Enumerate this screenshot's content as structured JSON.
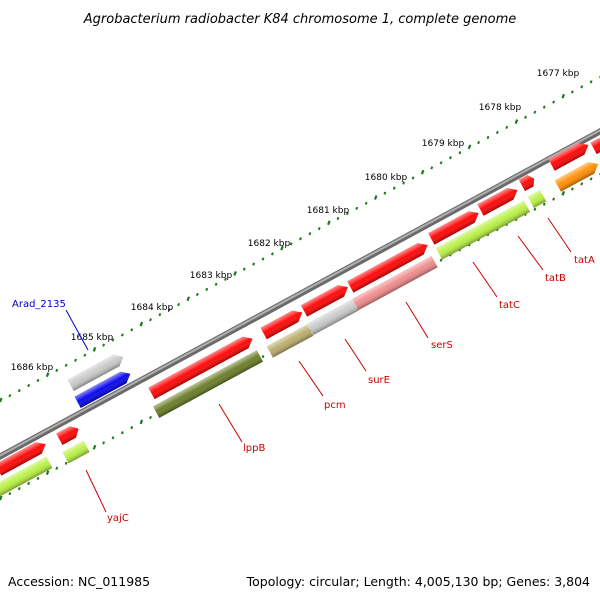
{
  "title": "Agrobacterium radiobacter K84 chromosome 1, complete genome",
  "footer": {
    "accession": "Accession: NC_011985",
    "topology": "Topology: circular; Length: 4,005,130 bp; Genes: 3,804"
  },
  "ticks": [
    {
      "label": "1677 kbp"
    },
    {
      "label": "1678 kbp"
    },
    {
      "label": "1679 kbp"
    },
    {
      "label": "1680 kbp"
    },
    {
      "label": "1681 kbp"
    },
    {
      "label": "1682 kbp"
    },
    {
      "label": "1683 kbp"
    },
    {
      "label": "1684 kbp"
    },
    {
      "label": "1685 kbp"
    },
    {
      "label": "1686 kbp"
    }
  ],
  "gene_labels": [
    {
      "name": "Arad_2135",
      "color": "#0000cc"
    },
    {
      "name": "yajC",
      "color": "#cc0000"
    },
    {
      "name": "lppB",
      "color": "#cc0000"
    },
    {
      "name": "pcm",
      "color": "#cc0000"
    },
    {
      "name": "surE",
      "color": "#cc0000"
    },
    {
      "name": "serS",
      "color": "#cc0000"
    },
    {
      "name": "tatC",
      "color": "#cc0000"
    },
    {
      "name": "tatB",
      "color": "#cc0000"
    },
    {
      "name": "tatA",
      "color": "#cc0000"
    }
  ],
  "colors": {
    "cds_strand": "#ff0000",
    "gene_pale_green": "#b8f040",
    "gene_olive": "#667a22",
    "gene_khaki": "#b9ab6a",
    "gene_gray": "#c8c8c8",
    "gene_pink": "#f08a8a",
    "gene_orange": "#ff8c00",
    "gene_blue": "#0000ee",
    "backbone": "#888888",
    "tick_green": "#1a7a1a"
  }
}
